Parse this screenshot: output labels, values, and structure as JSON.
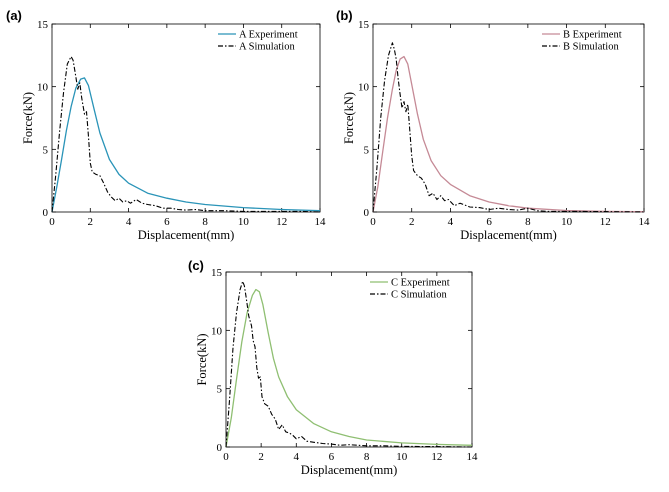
{
  "chart_data": [
    {
      "type": "line",
      "panel_label": "(a)",
      "xlabel": "Displacement(mm)",
      "ylabel": "Force(kN)",
      "xlim": [
        0,
        14
      ],
      "ylim": [
        0,
        15
      ],
      "xticks": [
        0,
        2,
        4,
        6,
        8,
        10,
        12,
        14
      ],
      "yticks": [
        0,
        5,
        10,
        15
      ],
      "legend_position": "top-right",
      "series": [
        {
          "name": "A Experiment",
          "style": "solid",
          "color": "#2a94b8",
          "x": [
            0,
            0.25,
            0.5,
            0.75,
            1.0,
            1.25,
            1.5,
            1.7,
            1.9,
            2.2,
            2.5,
            3.0,
            3.5,
            4.0,
            5.0,
            6.0,
            7.0,
            8.0,
            10.0,
            12.0,
            14.0
          ],
          "y": [
            0,
            2.0,
            4.2,
            6.5,
            8.4,
            9.9,
            10.6,
            10.7,
            10.1,
            8.2,
            6.3,
            4.2,
            3.0,
            2.3,
            1.5,
            1.1,
            0.8,
            0.6,
            0.35,
            0.2,
            0.1
          ]
        },
        {
          "name": "A Simulation",
          "style": "dash-dot",
          "color": "#000000",
          "x": [
            0,
            0.2,
            0.4,
            0.6,
            0.8,
            1.0,
            1.1,
            1.2,
            1.35,
            1.45,
            1.55,
            1.7,
            1.8,
            1.9,
            2.0,
            2.1,
            2.3,
            2.5,
            2.7,
            2.9,
            3.1,
            3.3,
            3.5,
            3.7,
            3.9,
            4.1,
            4.4,
            4.7,
            5.0,
            5.4,
            5.8,
            6.2,
            6.6,
            7.0,
            7.5,
            8.0,
            9.0,
            10.0,
            11.0,
            12.0,
            13.0,
            14.0
          ],
          "y": [
            0,
            3.0,
            6.5,
            9.5,
            11.8,
            12.4,
            12.1,
            11.2,
            9.8,
            10.3,
            9.1,
            7.8,
            8.0,
            6.1,
            3.9,
            3.2,
            3.0,
            2.9,
            2.3,
            1.6,
            1.2,
            0.9,
            1.1,
            0.8,
            0.9,
            0.7,
            1.0,
            0.7,
            0.6,
            0.5,
            0.3,
            0.3,
            0.2,
            0.15,
            0.2,
            0.1,
            0.1,
            0.05,
            0.05,
            0.05,
            0.05,
            0
          ]
        }
      ]
    },
    {
      "type": "line",
      "panel_label": "(b)",
      "xlabel": "Displacement(mm)",
      "ylabel": "Force(kN)",
      "xlim": [
        0,
        14
      ],
      "ylim": [
        0,
        15
      ],
      "xticks": [
        0,
        2,
        4,
        6,
        8,
        10,
        12,
        14
      ],
      "yticks": [
        0,
        5,
        10,
        15
      ],
      "legend_position": "top-right",
      "series": [
        {
          "name": "B Experiment",
          "style": "solid",
          "color": "#c58a96",
          "x": [
            0,
            0.25,
            0.5,
            0.75,
            1.0,
            1.2,
            1.4,
            1.6,
            1.8,
            2.0,
            2.3,
            2.6,
            3.0,
            3.5,
            4.0,
            5.0,
            6.0,
            7.0,
            8.0,
            10.0,
            12.0,
            14.0
          ],
          "y": [
            0,
            2.0,
            4.8,
            7.5,
            9.8,
            11.3,
            12.2,
            12.4,
            11.8,
            10.2,
            7.8,
            5.8,
            4.1,
            2.9,
            2.2,
            1.3,
            0.8,
            0.5,
            0.3,
            0.12,
            0.05,
            0.02
          ]
        },
        {
          "name": "B Simulation",
          "style": "dash-dot",
          "color": "#000000",
          "x": [
            0,
            0.2,
            0.4,
            0.6,
            0.8,
            1.0,
            1.1,
            1.2,
            1.3,
            1.4,
            1.5,
            1.6,
            1.7,
            1.8,
            1.9,
            2.0,
            2.1,
            2.3,
            2.5,
            2.7,
            2.9,
            3.1,
            3.3,
            3.5,
            3.7,
            3.9,
            4.2,
            4.5,
            5.0,
            5.5,
            6.0,
            6.5,
            7.0,
            7.5,
            8.0,
            8.5,
            9.0,
            10.0,
            12.0,
            14.0
          ],
          "y": [
            0,
            3.5,
            7.5,
            10.5,
            12.5,
            13.5,
            13.0,
            12.2,
            10.6,
            9.4,
            8.3,
            8.8,
            8.0,
            8.6,
            6.5,
            4.5,
            3.3,
            2.9,
            2.7,
            2.2,
            1.3,
            1.5,
            1.0,
            1.3,
            0.9,
            1.0,
            0.5,
            0.7,
            0.4,
            0.35,
            0.2,
            0.3,
            0.2,
            0.15,
            0.3,
            0.1,
            0.05,
            0.05,
            0.03,
            0
          ]
        }
      ]
    },
    {
      "type": "line",
      "panel_label": "(c)",
      "xlabel": "Displacement(mm)",
      "ylabel": "Force(kN)",
      "xlim": [
        0,
        14
      ],
      "ylim": [
        0,
        15
      ],
      "xticks": [
        0,
        2,
        4,
        6,
        8,
        10,
        12,
        14
      ],
      "yticks": [
        0,
        5,
        10,
        15
      ],
      "legend_position": "top-right",
      "series": [
        {
          "name": "C Experiment",
          "style": "solid",
          "color": "#8fbf72",
          "x": [
            0,
            0.3,
            0.6,
            0.9,
            1.2,
            1.5,
            1.7,
            1.9,
            2.1,
            2.4,
            2.7,
            3.0,
            3.5,
            4.0,
            5.0,
            6.0,
            7.0,
            8.0,
            10.0,
            12.0,
            14.0
          ],
          "y": [
            0,
            2.5,
            5.8,
            9.0,
            11.5,
            13.0,
            13.5,
            13.3,
            12.2,
            9.8,
            7.6,
            6.0,
            4.3,
            3.2,
            2.0,
            1.3,
            0.9,
            0.6,
            0.35,
            0.22,
            0.15
          ]
        },
        {
          "name": "C Simulation",
          "style": "dash-dot",
          "color": "#000000",
          "x": [
            0,
            0.2,
            0.4,
            0.6,
            0.8,
            0.95,
            1.05,
            1.15,
            1.3,
            1.45,
            1.55,
            1.65,
            1.75,
            1.85,
            1.95,
            2.05,
            2.2,
            2.4,
            2.6,
            2.8,
            3.0,
            3.2,
            3.4,
            3.6,
            3.8,
            4.0,
            4.3,
            4.6,
            5.0,
            5.5,
            6.0,
            6.5,
            7.0,
            8.0,
            9.0,
            10.0,
            12.0,
            14.0
          ],
          "y": [
            0,
            4.0,
            8.5,
            11.5,
            13.5,
            14.2,
            13.8,
            12.8,
            11.2,
            10.4,
            9.1,
            8.6,
            6.8,
            5.9,
            6.0,
            4.3,
            3.7,
            3.5,
            2.8,
            2.4,
            1.5,
            1.9,
            1.3,
            1.2,
            1.0,
            0.7,
            0.9,
            0.5,
            0.4,
            0.3,
            0.25,
            0.15,
            0.2,
            0.1,
            0.1,
            0.05,
            0.03,
            0
          ]
        }
      ]
    }
  ]
}
